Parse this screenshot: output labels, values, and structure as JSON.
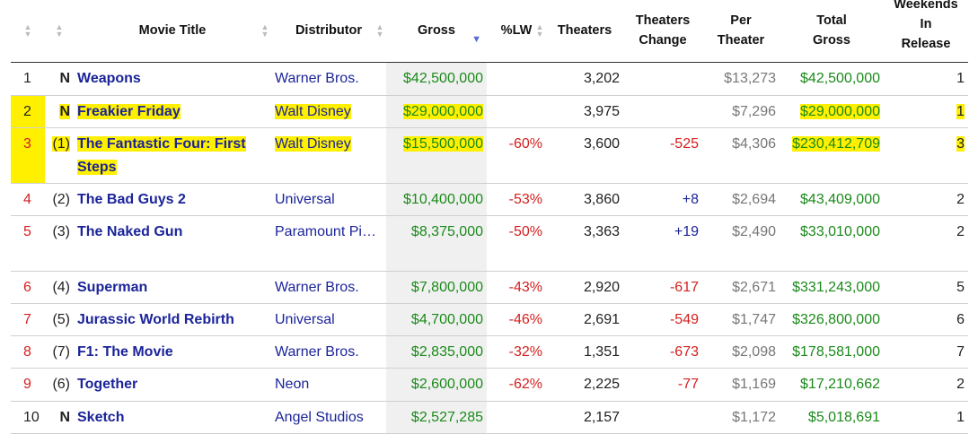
{
  "headers": {
    "movie_title": "Movie Title",
    "distributor": "Distributor",
    "gross": "Gross",
    "pct_lw": "%LW",
    "theaters": "Theaters",
    "theaters_change_1": "Theaters",
    "theaters_change_2": "Change",
    "per_theater_1": "Per",
    "per_theater_2": "Theater",
    "total_gross_1": "Total",
    "total_gross_2": "Gross",
    "weekends_1": "Weekends",
    "weekends_2": "In",
    "weekends_3": "Release"
  },
  "sort": {
    "column": "Gross",
    "direction": "descending",
    "icon": "sort-desc-icon"
  },
  "highlight_color": "#fff000",
  "rows": [
    {
      "rank": "1",
      "lw": "N",
      "title": "Weapons",
      "distributor": "Warner Bros.",
      "gross": "$42,500,000",
      "pct": "",
      "theaters": "3,202",
      "change": "",
      "per": "$13,273",
      "total": "$42,500,000",
      "weekends": "1"
    },
    {
      "rank": "2",
      "lw": "N",
      "title": "Freakier Friday",
      "distributor": "Walt Disney",
      "gross": "$29,000,000",
      "pct": "",
      "theaters": "3,975",
      "change": "",
      "per": "$7,296",
      "total": "$29,000,000",
      "weekends": "1"
    },
    {
      "rank": "3",
      "lw": "(1)",
      "title": "The Fantastic Four: First Steps",
      "distributor": "Walt Disney",
      "gross": "$15,500,000",
      "pct": "-60%",
      "theaters": "3,600",
      "change": "-525",
      "per": "$4,306",
      "total": "$230,412,709",
      "weekends": "3"
    },
    {
      "rank": "4",
      "lw": "(2)",
      "title": "The Bad Guys 2",
      "distributor": "Universal",
      "gross": "$10,400,000",
      "pct": "-53%",
      "theaters": "3,860",
      "change": "+8",
      "per": "$2,694",
      "total": "$43,409,000",
      "weekends": "2"
    },
    {
      "rank": "5",
      "lw": "(3)",
      "title": "The Naked Gun",
      "distributor": "Paramount Pi…",
      "gross": "$8,375,000",
      "pct": "-50%",
      "theaters": "3,363",
      "change": "+19",
      "per": "$2,490",
      "total": "$33,010,000",
      "weekends": "2"
    },
    {
      "rank": "6",
      "lw": "(4)",
      "title": "Superman",
      "distributor": "Warner Bros.",
      "gross": "$7,800,000",
      "pct": "-43%",
      "theaters": "2,920",
      "change": "-617",
      "per": "$2,671",
      "total": "$331,243,000",
      "weekends": "5"
    },
    {
      "rank": "7",
      "lw": "(5)",
      "title": "Jurassic World Rebirth",
      "distributor": "Universal",
      "gross": "$4,700,000",
      "pct": "-46%",
      "theaters": "2,691",
      "change": "-549",
      "per": "$1,747",
      "total": "$326,800,000",
      "weekends": "6"
    },
    {
      "rank": "8",
      "lw": "(7)",
      "title": "F1: The Movie",
      "distributor": "Warner Bros.",
      "gross": "$2,835,000",
      "pct": "-32%",
      "theaters": "1,351",
      "change": "-673",
      "per": "$2,098",
      "total": "$178,581,000",
      "weekends": "7"
    },
    {
      "rank": "9",
      "lw": "(6)",
      "title": "Together",
      "distributor": "Neon",
      "gross": "$2,600,000",
      "pct": "-62%",
      "theaters": "2,225",
      "change": "-77",
      "per": "$1,169",
      "total": "$17,210,662",
      "weekends": "2"
    },
    {
      "rank": "10",
      "lw": "N",
      "title": "Sketch",
      "distributor": "Angel Studios",
      "gross": "$2,527,285",
      "pct": "",
      "theaters": "2,157",
      "change": "",
      "per": "$1,172",
      "total": "$5,018,691",
      "weekends": "1"
    }
  ]
}
